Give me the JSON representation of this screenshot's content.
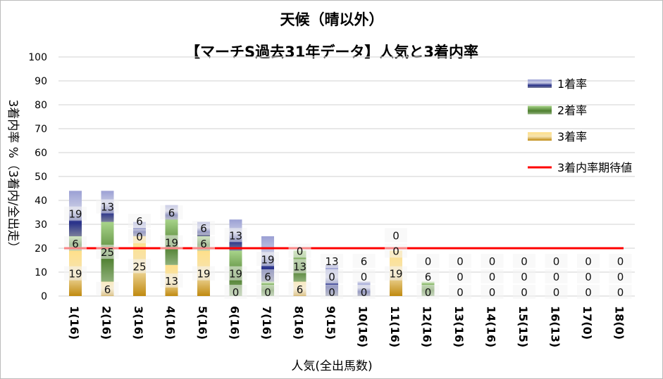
{
  "chart_data": {
    "type": "bar",
    "stacked": true,
    "title": "天候（晴以外）",
    "subtitle": "【マーチS過去31年データ】人気と3着内率",
    "xlabel": "人気(全出馬数)",
    "ylabel": "3着内率 %（3着内/全出走）",
    "ylim": [
      0,
      100
    ],
    "yticks": [
      0,
      10,
      20,
      30,
      40,
      50,
      60,
      70,
      80,
      90,
      100
    ],
    "categories": [
      "1(16)",
      "2(16)",
      "3(16)",
      "4(16)",
      "5(16)",
      "6(16)",
      "7(16)",
      "8(16)",
      "9(15)",
      "10(16)",
      "11(16)",
      "12(16)",
      "13(16)",
      "14(16)",
      "15(15)",
      "16(13)",
      "17(0)",
      "18(0)"
    ],
    "series": [
      {
        "name": "3着率",
        "color": "#c8951a",
        "values": [
          19,
          6,
          25,
          13,
          19,
          0,
          0,
          6,
          0,
          0,
          19,
          0,
          0,
          0,
          0,
          0,
          0,
          0
        ]
      },
      {
        "name": "2着率",
        "color": "#5a8a3a",
        "values": [
          6,
          25,
          0,
          19,
          6,
          19,
          6,
          13,
          0,
          0,
          0,
          6,
          0,
          0,
          0,
          0,
          0,
          0
        ]
      },
      {
        "name": "1着率",
        "color": "#2f3a8a",
        "values": [
          19,
          13,
          6,
          6,
          6,
          13,
          19,
          0,
          13,
          6,
          0,
          0,
          0,
          0,
          0,
          0,
          0,
          0
        ]
      }
    ],
    "line": {
      "name": "3着内率期待値",
      "color": "#ff0000",
      "value": 20
    },
    "grid": true,
    "legend": "right"
  }
}
